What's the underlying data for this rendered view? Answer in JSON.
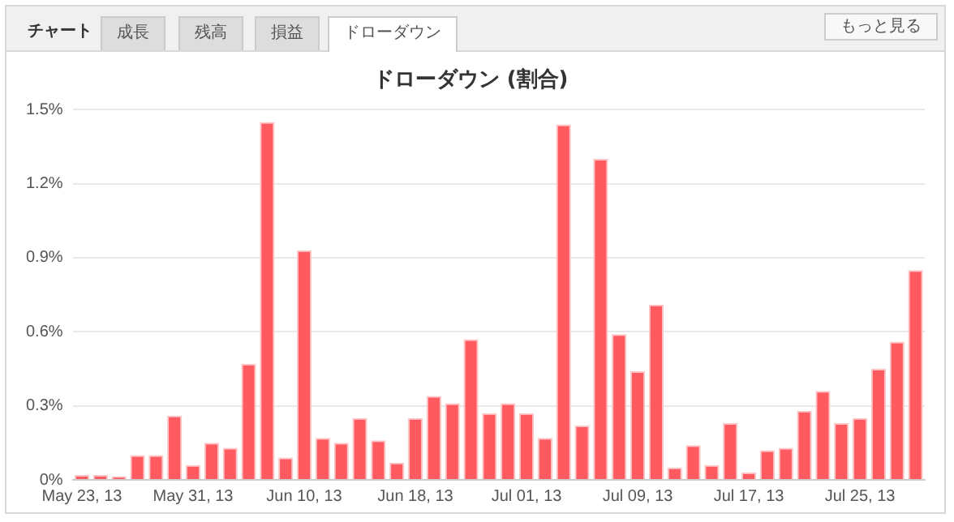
{
  "chart_data": {
    "type": "bar",
    "title": "ドローダウン (割合)",
    "annotations": [
      "チャート",
      "成長",
      "残高",
      "損益",
      "ドローダウン",
      "もっと見る"
    ],
    "categories": [
      "May 23, 13",
      null,
      null,
      null,
      null,
      null,
      "May 31, 13",
      null,
      null,
      null,
      null,
      null,
      "Jun 10, 13",
      null,
      null,
      null,
      null,
      null,
      "Jun 18, 13",
      null,
      null,
      null,
      null,
      null,
      "Jul 01, 13",
      null,
      null,
      null,
      null,
      null,
      "Jul 09, 13",
      null,
      null,
      null,
      null,
      null,
      "Jul 17, 13",
      null,
      null,
      null,
      null,
      null,
      "Jul 25, 13",
      null,
      null,
      null
    ],
    "values": [
      0.02,
      0.02,
      0.015,
      0.1,
      0.1,
      0.26,
      0.06,
      0.15,
      0.13,
      0.47,
      1.45,
      0.09,
      0.93,
      0.17,
      0.15,
      0.25,
      0.16,
      0.07,
      0.25,
      0.34,
      0.31,
      0.57,
      0.27,
      0.31,
      0.27,
      0.17,
      1.44,
      0.22,
      1.3,
      0.59,
      0.44,
      0.71,
      0.05,
      0.14,
      0.06,
      0.23,
      0.03,
      0.12,
      0.13,
      0.28,
      0.36,
      0.23,
      0.25,
      0.45,
      0.56,
      0.85
    ],
    "color": "#ff5a5f",
    "ylim": [
      0,
      1.5
    ],
    "yticks": [
      {
        "value": 0,
        "label": "0%"
      },
      {
        "value": 0.3,
        "label": "0.3%"
      },
      {
        "value": 0.6,
        "label": "0.6%"
      },
      {
        "value": 0.9,
        "label": "0.9%"
      },
      {
        "value": 1.2,
        "label": "1.2%"
      },
      {
        "value": 1.5,
        "label": "1.5%"
      }
    ],
    "grid": "y",
    "legend": false
  }
}
